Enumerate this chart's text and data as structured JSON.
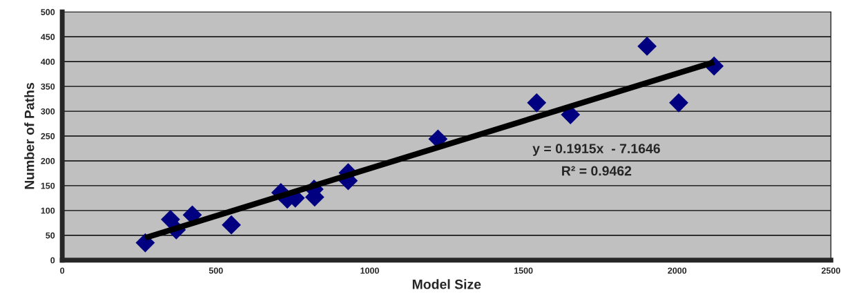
{
  "chart_data": {
    "type": "scatter",
    "xlabel": "Model Size",
    "ylabel": "Number of Paths",
    "xlim": [
      0,
      2500
    ],
    "xticks": [
      0,
      500,
      1000,
      1500,
      2000,
      2500
    ],
    "ylim": [
      0,
      500
    ],
    "yticks": [
      0,
      50,
      100,
      150,
      200,
      250,
      300,
      350,
      400,
      450,
      500
    ],
    "grid": "y",
    "marker": "diamond",
    "series": [
      {
        "color": "#000080",
        "x": [
          270,
          352,
          371,
          423,
          550,
          711,
          732,
          758,
          819,
          821,
          930,
          930,
          1222,
          1543,
          1653,
          1902,
          2005,
          2120
        ],
        "values": [
          35,
          82,
          61,
          91,
          71,
          136,
          123,
          125,
          143,
          127,
          176,
          160,
          244,
          317,
          293,
          431,
          317,
          391
        ]
      },
      {
        "type": "line",
        "color": "#000000",
        "marker": "none",
        "line_style": "solid",
        "x": [
          270,
          2120
        ],
        "values": [
          45,
          399
        ]
      }
    ],
    "annotations": [
      "y = 0.1915x  - 7.1646",
      "R² = 0.9462"
    ]
  }
}
